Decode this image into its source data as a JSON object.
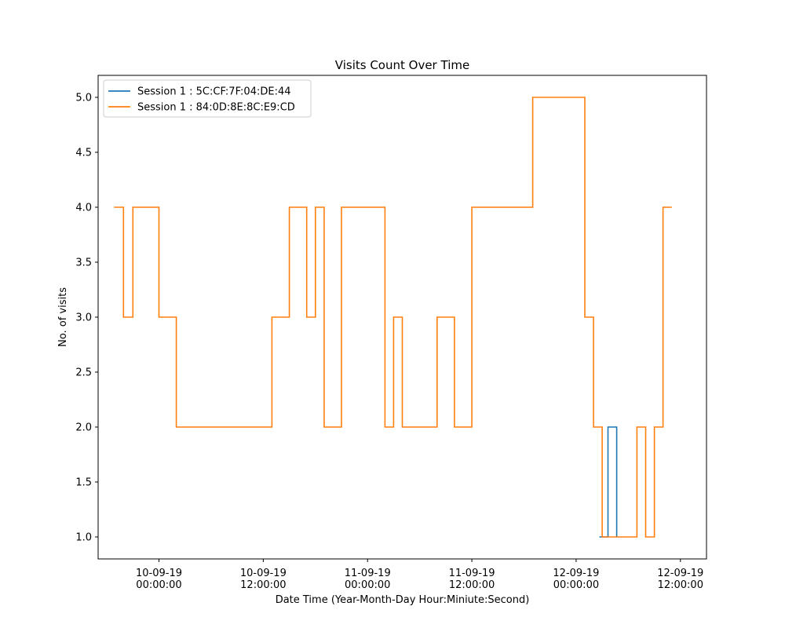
{
  "chart_data": {
    "type": "line",
    "title": "Visits Count Over Time",
    "xlabel": "Date Time (Year-Month-Day Hour:Miniute:Second)",
    "ylabel": "No. of visits",
    "step": "post",
    "ylim": [
      0.8,
      5.2
    ],
    "yticks": [
      1.0,
      1.5,
      2.0,
      2.5,
      3.0,
      3.5,
      4.0,
      4.5,
      5.0
    ],
    "xlim": [
      "2019-09-09 17:00",
      "2019-09-12 15:00"
    ],
    "xticks": [
      {
        "value": "2019-09-10 00:00",
        "line1": "10-09-19",
        "line2": "00:00:00"
      },
      {
        "value": "2019-09-10 12:00",
        "line1": "10-09-19",
        "line2": "12:00:00"
      },
      {
        "value": "2019-09-11 00:00",
        "line1": "11-09-19",
        "line2": "00:00:00"
      },
      {
        "value": "2019-09-11 12:00",
        "line1": "11-09-19",
        "line2": "12:00:00"
      },
      {
        "value": "2019-09-12 00:00",
        "line1": "12-09-19",
        "line2": "00:00:00"
      },
      {
        "value": "2019-09-12 12:00",
        "line1": "12-09-19",
        "line2": "12:00:00"
      }
    ],
    "legend_position": "upper-left",
    "grid": false,
    "series": [
      {
        "name": "Session 1 : 5C:CF:7F:04:DE:44",
        "color": "#1f77b4",
        "points": [
          {
            "x": "2019-09-12 02:40",
            "y": 1
          },
          {
            "x": "2019-09-12 03:40",
            "y": 2
          },
          {
            "x": "2019-09-12 04:40",
            "y": 1
          }
        ]
      },
      {
        "name": "Session 1 : 84:0D:8E:8C:E9:CD",
        "color": "#ff7f0e",
        "points": [
          {
            "x": "2019-09-09 18:50",
            "y": 4
          },
          {
            "x": "2019-09-09 19:55",
            "y": 3
          },
          {
            "x": "2019-09-09 21:00",
            "y": 4
          },
          {
            "x": "2019-09-10 00:00",
            "y": 3
          },
          {
            "x": "2019-09-10 02:00",
            "y": 2
          },
          {
            "x": "2019-09-10 13:00",
            "y": 3
          },
          {
            "x": "2019-09-10 15:00",
            "y": 4
          },
          {
            "x": "2019-09-10 17:00",
            "y": 3
          },
          {
            "x": "2019-09-10 18:00",
            "y": 4
          },
          {
            "x": "2019-09-10 19:00",
            "y": 2
          },
          {
            "x": "2019-09-10 21:00",
            "y": 4
          },
          {
            "x": "2019-09-11 02:00",
            "y": 2
          },
          {
            "x": "2019-09-11 03:00",
            "y": 3
          },
          {
            "x": "2019-09-11 04:00",
            "y": 2
          },
          {
            "x": "2019-09-11 08:00",
            "y": 3
          },
          {
            "x": "2019-09-11 10:00",
            "y": 2
          },
          {
            "x": "2019-09-11 12:00",
            "y": 4
          },
          {
            "x": "2019-09-11 19:00",
            "y": 5
          },
          {
            "x": "2019-09-12 01:00",
            "y": 3
          },
          {
            "x": "2019-09-12 02:00",
            "y": 2
          },
          {
            "x": "2019-09-12 03:00",
            "y": 1
          },
          {
            "x": "2019-09-12 07:00",
            "y": 2
          },
          {
            "x": "2019-09-12 08:00",
            "y": 1
          },
          {
            "x": "2019-09-12 09:00",
            "y": 2
          },
          {
            "x": "2019-09-12 10:00",
            "y": 4
          },
          {
            "x": "2019-09-12 11:00",
            "y": 4
          }
        ]
      }
    ]
  }
}
